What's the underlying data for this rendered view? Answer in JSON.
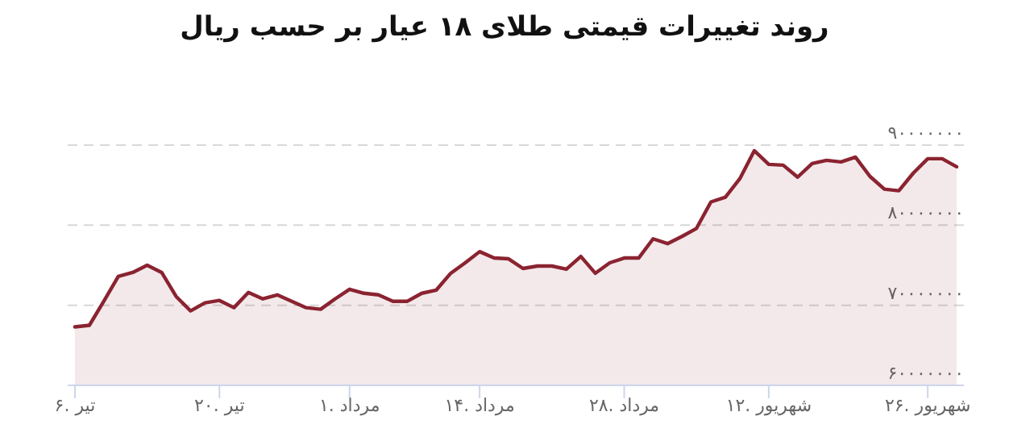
{
  "chart_data": {
    "type": "area",
    "title": "روند تغییرات قیمتی طلای ۱۸ عیار بر حسب ریال",
    "categories": [
      "۶. تیر",
      null,
      null,
      null,
      null,
      null,
      null,
      null,
      null,
      null,
      "۲۰. تیر",
      null,
      null,
      null,
      null,
      null,
      null,
      null,
      null,
      "۱. مرداد",
      null,
      null,
      null,
      null,
      null,
      null,
      null,
      null,
      "۱۴. مرداد",
      null,
      null,
      null,
      null,
      null,
      null,
      null,
      null,
      null,
      "۲۸. مرداد",
      null,
      null,
      null,
      null,
      null,
      null,
      null,
      null,
      null,
      "۱۲. شهریور",
      null,
      null,
      null,
      null,
      null,
      null,
      null,
      null,
      null,
      null,
      "۲۶. شهریور",
      null,
      null
    ],
    "values": [
      67300000,
      67500000,
      70500000,
      73600000,
      74100000,
      75000000,
      74100000,
      71100000,
      69300000,
      70300000,
      70600000,
      69700000,
      71600000,
      70800000,
      71300000,
      70500000,
      69700000,
      69500000,
      70800000,
      72000000,
      71500000,
      71300000,
      70500000,
      70500000,
      71500000,
      71900000,
      74000000,
      75300000,
      76700000,
      75900000,
      75800000,
      74600000,
      74900000,
      74900000,
      74500000,
      76100000,
      74000000,
      75300000,
      75900000,
      75900000,
      78300000,
      77700000,
      78600000,
      79600000,
      82900000,
      83500000,
      85800000,
      89300000,
      87600000,
      87500000,
      86000000,
      87700000,
      88100000,
      87900000,
      88500000,
      86100000,
      84500000,
      84300000,
      86500000,
      88300000,
      88300000,
      87300000
    ],
    "color": "#8b2330",
    "ylim": [
      60000000,
      90000000
    ],
    "yticks": [
      {
        "value": 60000000,
        "label": "۶۰۰۰۰۰۰۰"
      },
      {
        "value": 70000000,
        "label": "۷۰۰۰۰۰۰۰"
      },
      {
        "value": 80000000,
        "label": "۸۰۰۰۰۰۰۰"
      },
      {
        "value": 90000000,
        "label": "۹۰۰۰۰۰۰۰"
      }
    ],
    "grid": "y"
  }
}
